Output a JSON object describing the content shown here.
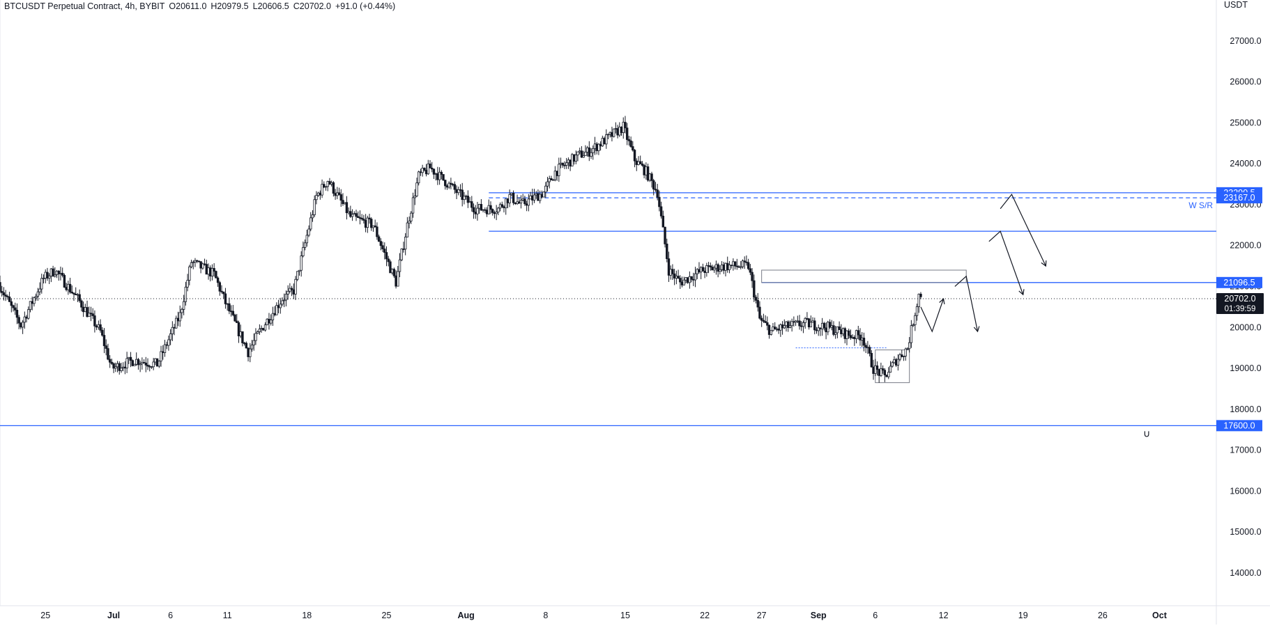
{
  "header": {
    "symbol": "BTCUSDT Perpetual Contract, 4h, BYBIT",
    "open": "O20611.0",
    "high": "H20979.5",
    "low": "L20606.5",
    "close": "C20702.0",
    "change": "+91.0 (+0.44%)"
  },
  "price_axis": {
    "unit": "USDT"
  },
  "current_price": {
    "label": "20702.0",
    "countdown": "01:39:59"
  },
  "colors": {
    "candle": "#131722",
    "level_line": "#2962ff",
    "label_bg": "#2962ff",
    "current_bg": "#131722",
    "axis_text": "#131722"
  },
  "chart_data": {
    "type": "candlestick",
    "symbol": "BTCUSDT Perpetual Contract",
    "timeframe": "4h",
    "exchange": "BYBIT",
    "ylim": [
      13200,
      28000
    ],
    "y_ticks": [
      27000,
      26000,
      25000,
      24000,
      23000,
      22000,
      21000,
      20000,
      19000,
      18000,
      17000,
      16000,
      15000,
      14000
    ],
    "y_tick_labels": [
      "27000.0",
      "26000.0",
      "25000.0",
      "24000.0",
      "23000.0",
      "22000.0",
      "21000.0",
      "20000.0",
      "19000.0",
      "18000.0",
      "17000.0",
      "16000.0",
      "15000.0",
      "14000.0"
    ],
    "x_range": [
      "2022-06-21",
      "2022-10-06"
    ],
    "x_ticks": [
      {
        "date": "2022-06-25",
        "label": "25"
      },
      {
        "date": "2022-07-01",
        "label": "Jul"
      },
      {
        "date": "2022-07-06",
        "label": "6"
      },
      {
        "date": "2022-07-11",
        "label": "11"
      },
      {
        "date": "2022-07-18",
        "label": "18"
      },
      {
        "date": "2022-07-25",
        "label": "25"
      },
      {
        "date": "2022-08-01",
        "label": "Aug"
      },
      {
        "date": "2022-08-08",
        "label": "8"
      },
      {
        "date": "2022-08-15",
        "label": "15"
      },
      {
        "date": "2022-08-22",
        "label": "22"
      },
      {
        "date": "2022-08-27",
        "label": "27"
      },
      {
        "date": "2022-09-01",
        "label": "Sep"
      },
      {
        "date": "2022-09-06",
        "label": "6"
      },
      {
        "date": "2022-09-12",
        "label": "12"
      },
      {
        "date": "2022-09-19",
        "label": "19"
      },
      {
        "date": "2022-09-26",
        "label": "26"
      },
      {
        "date": "2022-10-01",
        "label": "Oct"
      }
    ],
    "price_path": [
      [
        "2022-06-21",
        21100
      ],
      [
        "2022-06-23",
        20050
      ],
      [
        "2022-06-25",
        21200
      ],
      [
        "2022-06-26",
        21400
      ],
      [
        "2022-06-28",
        20700
      ],
      [
        "2022-06-30",
        19900
      ],
      [
        "2022-07-01",
        19000
      ],
      [
        "2022-07-03",
        19200
      ],
      [
        "2022-07-05",
        19100
      ],
      [
        "2022-07-07",
        20300
      ],
      [
        "2022-07-08",
        21600
      ],
      [
        "2022-07-10",
        21300
      ],
      [
        "2022-07-11",
        20600
      ],
      [
        "2022-07-13",
        19400
      ],
      [
        "2022-07-14",
        19900
      ],
      [
        "2022-07-16",
        20700
      ],
      [
        "2022-07-17",
        20900
      ],
      [
        "2022-07-19",
        23200
      ],
      [
        "2022-07-20",
        23600
      ],
      [
        "2022-07-22",
        22700
      ],
      [
        "2022-07-23",
        22600
      ],
      [
        "2022-07-24",
        22500
      ],
      [
        "2022-07-26",
        21100
      ],
      [
        "2022-07-27",
        22500
      ],
      [
        "2022-07-28",
        23700
      ],
      [
        "2022-07-29",
        23900
      ],
      [
        "2022-07-31",
        23400
      ],
      [
        "2022-08-02",
        22900
      ],
      [
        "2022-08-04",
        22900
      ],
      [
        "2022-08-05",
        23200
      ],
      [
        "2022-08-06",
        23000
      ],
      [
        "2022-08-08",
        23300
      ],
      [
        "2022-08-09",
        23800
      ],
      [
        "2022-08-11",
        24200
      ],
      [
        "2022-08-12",
        24300
      ],
      [
        "2022-08-14",
        24700
      ],
      [
        "2022-08-15",
        24900
      ],
      [
        "2022-08-16",
        24100
      ],
      [
        "2022-08-17",
        23800
      ],
      [
        "2022-08-18",
        23300
      ],
      [
        "2022-08-19",
        21400
      ],
      [
        "2022-08-20",
        21100
      ],
      [
        "2022-08-22",
        21400
      ],
      [
        "2022-08-24",
        21500
      ],
      [
        "2022-08-26",
        21500
      ],
      [
        "2022-08-27",
        20200
      ],
      [
        "2022-08-28",
        19900
      ],
      [
        "2022-08-29",
        20000
      ],
      [
        "2022-08-31",
        20100
      ],
      [
        "2022-09-02",
        20000
      ],
      [
        "2022-09-04",
        19800
      ],
      [
        "2022-09-05",
        19800
      ],
      [
        "2022-09-06",
        19000
      ],
      [
        "2022-09-07",
        18800
      ],
      [
        "2022-09-08",
        19200
      ],
      [
        "2022-09-09",
        19500
      ],
      [
        "2022-09-10",
        20800
      ]
    ],
    "levels": [
      {
        "price": 23290.5,
        "label": "23290.5",
        "style": "solid",
        "from": "2022-08-03"
      },
      {
        "price": 23167.0,
        "label": "23167.0",
        "style": "dashed",
        "from": "2022-08-03"
      },
      {
        "price": 22350.0,
        "label": "",
        "style": "solid",
        "from": "2022-08-03"
      },
      {
        "price": 21096.5,
        "label": "21096.5",
        "style": "solid",
        "from": "2022-08-27"
      },
      {
        "price": 17600.0,
        "label": "17600.0",
        "style": "solid",
        "from": "2022-06-21"
      }
    ],
    "level_annotation": "W S/R",
    "current_price": 20702.0,
    "zones": [
      {
        "from": "2022-08-27",
        "to": "2022-09-14",
        "top": 21400,
        "bottom": 21096.5,
        "style": "box-grey"
      },
      {
        "from": "2022-09-06",
        "to": "2022-09-09",
        "top": 19450,
        "bottom": 18650,
        "style": "box-grey"
      },
      {
        "from": "2022-08-30",
        "to": "2022-09-07",
        "top": 19500,
        "bottom": 19500,
        "style": "dotted-line"
      }
    ],
    "projection_arrows": [
      [
        [
          "2022-09-10",
          20500
        ],
        [
          "2022-09-11",
          19900
        ],
        [
          "2022-09-12",
          20700
        ]
      ],
      [
        [
          "2022-09-13",
          21000
        ],
        [
          "2022-09-14",
          21250
        ],
        [
          "2022-09-15",
          19900
        ]
      ],
      [
        [
          "2022-09-16",
          22100
        ],
        [
          "2022-09-17",
          22350
        ],
        [
          "2022-09-19",
          20800
        ]
      ],
      [
        [
          "2022-09-17",
          22900
        ],
        [
          "2022-09-18",
          23250
        ],
        [
          "2022-09-21",
          21500
        ]
      ]
    ]
  }
}
